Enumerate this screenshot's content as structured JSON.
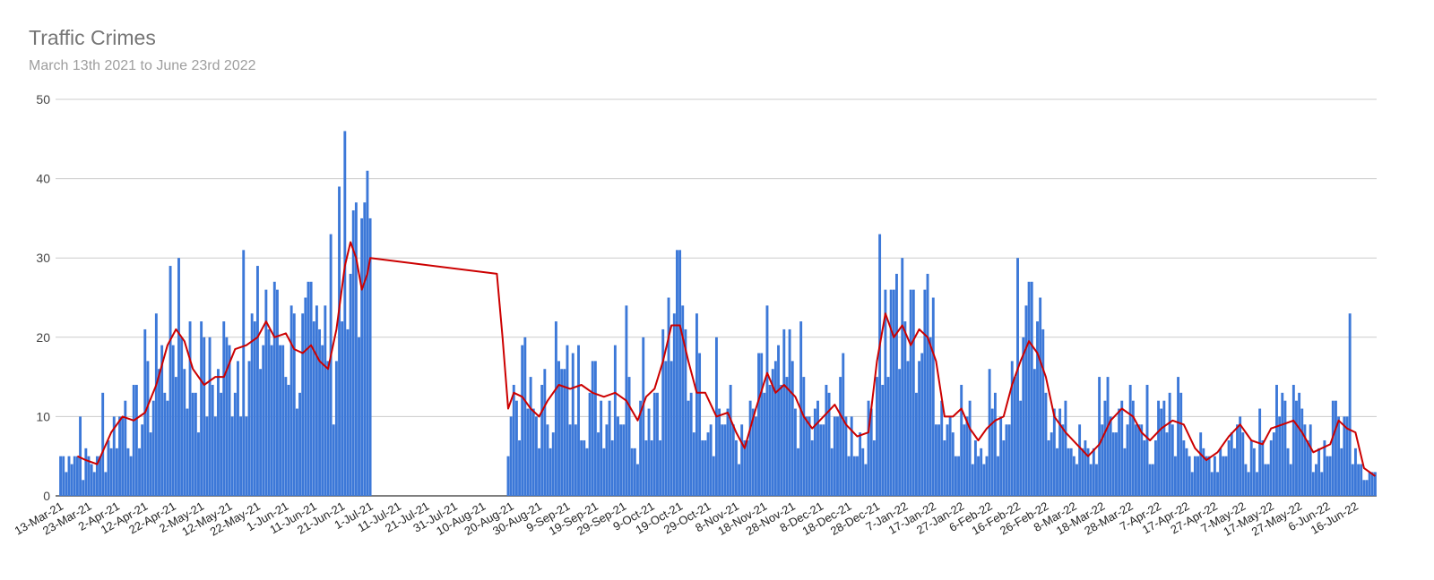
{
  "title": "Traffic Crimes",
  "subtitle": "March 13th 2021 to June 23rd 2022",
  "colors": {
    "bars": "#3c78d8",
    "moving_average": "#cc0000",
    "grid": "#cccccc",
    "title": "#757575",
    "subtitle": "#9e9e9e"
  },
  "chart_data": {
    "type": "bar",
    "title": "Traffic Crimes",
    "subtitle": "March 13th 2021 to June 23rd 2022",
    "x_start": "2021-03-13",
    "x_end": "2022-06-23",
    "ylim": [
      0,
      50
    ],
    "y_ticks": [
      "0",
      "10",
      "20",
      "30",
      "40",
      "50"
    ],
    "x_tick_labels": [
      "13-Mar-21",
      "23-Mar-21",
      "2-Apr-21",
      "12-Apr-21",
      "22-Apr-21",
      "2-May-21",
      "12-May-21",
      "22-May-21",
      "1-Jun-21",
      "11-Jun-21",
      "21-Jun-21",
      "1-Jul-21",
      "11-Jul-21",
      "21-Jul-21",
      "31-Jul-21",
      "10-Aug-21",
      "20-Aug-21",
      "30-Aug-21",
      "9-Sep-21",
      "19-Sep-21",
      "29-Sep-21",
      "9-Oct-21",
      "19-Oct-21",
      "29-Oct-21",
      "8-Nov-21",
      "18-Nov-21",
      "28-Nov-21",
      "8-Dec-21",
      "18-Dec-21",
      "28-Dec-21",
      "7-Jan-22",
      "17-Jan-22",
      "27-Jan-22",
      "6-Feb-22",
      "16-Feb-22",
      "26-Feb-22",
      "8-Mar-22",
      "18-Mar-22",
      "28-Mar-22",
      "7-Apr-22",
      "17-Apr-22",
      "27-Apr-22",
      "7-May-22",
      "17-May-22",
      "27-May-22",
      "6-Jun-22",
      "16-Jun-22"
    ],
    "grid": true,
    "legend": "none",
    "gap": {
      "from": "2021-07-02",
      "to": "2021-08-18"
    },
    "daily_peaks": [
      {
        "date": "2021-03-16",
        "value": 5
      },
      {
        "date": "2021-03-20",
        "value": 10
      },
      {
        "date": "2021-03-28",
        "value": 13
      },
      {
        "date": "2021-04-05",
        "value": 12
      },
      {
        "date": "2021-04-12",
        "value": 21
      },
      {
        "date": "2021-04-16",
        "value": 23
      },
      {
        "date": "2021-04-24",
        "value": 30
      },
      {
        "date": "2021-05-02",
        "value": 22
      },
      {
        "date": "2021-05-10",
        "value": 22
      },
      {
        "date": "2021-05-17",
        "value": 31
      },
      {
        "date": "2021-05-25",
        "value": 26
      },
      {
        "date": "2021-05-29",
        "value": 26
      },
      {
        "date": "2021-06-04",
        "value": 23
      },
      {
        "date": "2021-06-11",
        "value": 22
      },
      {
        "date": "2021-06-15",
        "value": 24
      },
      {
        "date": "2021-06-17",
        "value": 33
      },
      {
        "date": "2021-06-20",
        "value": 39
      },
      {
        "date": "2021-06-22",
        "value": 46
      },
      {
        "date": "2021-06-28",
        "value": 35
      },
      {
        "date": "2021-06-29",
        "value": 37
      },
      {
        "date": "2021-07-01",
        "value": 35
      },
      {
        "date": "2021-08-25",
        "value": 20
      },
      {
        "date": "2021-09-05",
        "value": 22
      },
      {
        "date": "2021-09-13",
        "value": 19
      },
      {
        "date": "2021-09-26",
        "value": 19
      },
      {
        "date": "2021-09-30",
        "value": 24
      },
      {
        "date": "2021-10-06",
        "value": 20
      },
      {
        "date": "2021-10-17",
        "value": 23
      },
      {
        "date": "2021-10-19",
        "value": 31
      },
      {
        "date": "2021-10-25",
        "value": 23
      },
      {
        "date": "2021-11-01",
        "value": 20
      },
      {
        "date": "2021-11-19",
        "value": 24
      },
      {
        "date": "2021-11-27",
        "value": 21
      },
      {
        "date": "2021-12-01",
        "value": 22
      },
      {
        "date": "2021-12-16",
        "value": 18
      },
      {
        "date": "2021-12-29",
        "value": 33
      },
      {
        "date": "2022-01-03",
        "value": 26
      },
      {
        "date": "2022-01-04",
        "value": 28
      },
      {
        "date": "2022-01-09",
        "value": 26
      },
      {
        "date": "2022-01-14",
        "value": 26
      },
      {
        "date": "2022-01-17",
        "value": 25
      },
      {
        "date": "2022-02-06",
        "value": 16
      },
      {
        "date": "2022-02-16",
        "value": 30
      },
      {
        "date": "2022-02-19",
        "value": 24
      },
      {
        "date": "2022-02-23",
        "value": 22
      },
      {
        "date": "2022-03-01",
        "value": 11
      },
      {
        "date": "2022-03-17",
        "value": 15
      },
      {
        "date": "2022-03-20",
        "value": 15
      },
      {
        "date": "2022-04-03",
        "value": 14
      },
      {
        "date": "2022-04-14",
        "value": 15
      },
      {
        "date": "2022-05-13",
        "value": 11
      },
      {
        "date": "2022-05-19",
        "value": 14
      },
      {
        "date": "2022-05-25",
        "value": 14
      },
      {
        "date": "2022-06-08",
        "value": 12
      },
      {
        "date": "2022-06-14",
        "value": 23
      }
    ],
    "moving_average": [
      {
        "date": "2021-03-19",
        "value": 5
      },
      {
        "date": "2021-03-22",
        "value": 4.5
      },
      {
        "date": "2021-03-26",
        "value": 4
      },
      {
        "date": "2021-03-31",
        "value": 8
      },
      {
        "date": "2021-04-04",
        "value": 10
      },
      {
        "date": "2021-04-08",
        "value": 9.5
      },
      {
        "date": "2021-04-12",
        "value": 10.5
      },
      {
        "date": "2021-04-16",
        "value": 14
      },
      {
        "date": "2021-04-20",
        "value": 19
      },
      {
        "date": "2021-04-23",
        "value": 21
      },
      {
        "date": "2021-04-26",
        "value": 19.5
      },
      {
        "date": "2021-04-29",
        "value": 16
      },
      {
        "date": "2021-05-03",
        "value": 14
      },
      {
        "date": "2021-05-07",
        "value": 15
      },
      {
        "date": "2021-05-10",
        "value": 15
      },
      {
        "date": "2021-05-14",
        "value": 18.5
      },
      {
        "date": "2021-05-18",
        "value": 19
      },
      {
        "date": "2021-05-22",
        "value": 20
      },
      {
        "date": "2021-05-25",
        "value": 22
      },
      {
        "date": "2021-05-28",
        "value": 20
      },
      {
        "date": "2021-06-01",
        "value": 20.5
      },
      {
        "date": "2021-06-04",
        "value": 18.5
      },
      {
        "date": "2021-06-07",
        "value": 18
      },
      {
        "date": "2021-06-10",
        "value": 19
      },
      {
        "date": "2021-06-13",
        "value": 17
      },
      {
        "date": "2021-06-16",
        "value": 16
      },
      {
        "date": "2021-06-19",
        "value": 21
      },
      {
        "date": "2021-06-22",
        "value": 29
      },
      {
        "date": "2021-06-24",
        "value": 32
      },
      {
        "date": "2021-06-26",
        "value": 30
      },
      {
        "date": "2021-06-28",
        "value": 26
      },
      {
        "date": "2021-06-30",
        "value": 28
      },
      {
        "date": "2021-07-01",
        "value": 30
      },
      {
        "date": "2021-08-15",
        "value": 28
      },
      {
        "date": "2021-08-17",
        "value": 20
      },
      {
        "date": "2021-08-19",
        "value": 11
      },
      {
        "date": "2021-08-21",
        "value": 13
      },
      {
        "date": "2021-08-24",
        "value": 12.5
      },
      {
        "date": "2021-08-27",
        "value": 11
      },
      {
        "date": "2021-08-30",
        "value": 10
      },
      {
        "date": "2021-09-02",
        "value": 12
      },
      {
        "date": "2021-09-06",
        "value": 14
      },
      {
        "date": "2021-09-10",
        "value": 13.5
      },
      {
        "date": "2021-09-14",
        "value": 14
      },
      {
        "date": "2021-09-18",
        "value": 13
      },
      {
        "date": "2021-09-22",
        "value": 12.5
      },
      {
        "date": "2021-09-26",
        "value": 13
      },
      {
        "date": "2021-09-30",
        "value": 12
      },
      {
        "date": "2021-10-04",
        "value": 9.5
      },
      {
        "date": "2021-10-07",
        "value": 12.5
      },
      {
        "date": "2021-10-10",
        "value": 13.5
      },
      {
        "date": "2021-10-13",
        "value": 17
      },
      {
        "date": "2021-10-16",
        "value": 21.5
      },
      {
        "date": "2021-10-19",
        "value": 21.5
      },
      {
        "date": "2021-10-22",
        "value": 17
      },
      {
        "date": "2021-10-25",
        "value": 13
      },
      {
        "date": "2021-10-28",
        "value": 13
      },
      {
        "date": "2021-11-01",
        "value": 10
      },
      {
        "date": "2021-11-05",
        "value": 10.5
      },
      {
        "date": "2021-11-08",
        "value": 8
      },
      {
        "date": "2021-11-11",
        "value": 6
      },
      {
        "date": "2021-11-15",
        "value": 11
      },
      {
        "date": "2021-11-19",
        "value": 15.5
      },
      {
        "date": "2021-11-22",
        "value": 13
      },
      {
        "date": "2021-11-25",
        "value": 14
      },
      {
        "date": "2021-11-29",
        "value": 12.5
      },
      {
        "date": "2021-12-02",
        "value": 10
      },
      {
        "date": "2021-12-05",
        "value": 8.5
      },
      {
        "date": "2021-12-09",
        "value": 10
      },
      {
        "date": "2021-12-13",
        "value": 11.5
      },
      {
        "date": "2021-12-17",
        "value": 9
      },
      {
        "date": "2021-12-21",
        "value": 7.5
      },
      {
        "date": "2021-12-25",
        "value": 8
      },
      {
        "date": "2021-12-28",
        "value": 17
      },
      {
        "date": "2021-12-31",
        "value": 23
      },
      {
        "date": "2022-01-03",
        "value": 20
      },
      {
        "date": "2022-01-06",
        "value": 21.5
      },
      {
        "date": "2022-01-09",
        "value": 19
      },
      {
        "date": "2022-01-12",
        "value": 21
      },
      {
        "date": "2022-01-15",
        "value": 20
      },
      {
        "date": "2022-01-18",
        "value": 17
      },
      {
        "date": "2022-01-21",
        "value": 10
      },
      {
        "date": "2022-01-24",
        "value": 10
      },
      {
        "date": "2022-01-27",
        "value": 11
      },
      {
        "date": "2022-01-30",
        "value": 8.5
      },
      {
        "date": "2022-02-02",
        "value": 7
      },
      {
        "date": "2022-02-05",
        "value": 8.5
      },
      {
        "date": "2022-02-08",
        "value": 9.5
      },
      {
        "date": "2022-02-11",
        "value": 10
      },
      {
        "date": "2022-02-14",
        "value": 14
      },
      {
        "date": "2022-02-17",
        "value": 17
      },
      {
        "date": "2022-02-20",
        "value": 19.5
      },
      {
        "date": "2022-02-23",
        "value": 18
      },
      {
        "date": "2022-02-26",
        "value": 15
      },
      {
        "date": "2022-03-01",
        "value": 10
      },
      {
        "date": "2022-03-05",
        "value": 8
      },
      {
        "date": "2022-03-09",
        "value": 6.5
      },
      {
        "date": "2022-03-13",
        "value": 5
      },
      {
        "date": "2022-03-17",
        "value": 6.5
      },
      {
        "date": "2022-03-21",
        "value": 9.5
      },
      {
        "date": "2022-03-25",
        "value": 11
      },
      {
        "date": "2022-03-29",
        "value": 10
      },
      {
        "date": "2022-04-01",
        "value": 8
      },
      {
        "date": "2022-04-04",
        "value": 7
      },
      {
        "date": "2022-04-08",
        "value": 8.5
      },
      {
        "date": "2022-04-12",
        "value": 9.5
      },
      {
        "date": "2022-04-16",
        "value": 9
      },
      {
        "date": "2022-04-20",
        "value": 6
      },
      {
        "date": "2022-04-24",
        "value": 4.5
      },
      {
        "date": "2022-04-28",
        "value": 5.5
      },
      {
        "date": "2022-05-02",
        "value": 7.5
      },
      {
        "date": "2022-05-06",
        "value": 9
      },
      {
        "date": "2022-05-10",
        "value": 7
      },
      {
        "date": "2022-05-14",
        "value": 6.5
      },
      {
        "date": "2022-05-17",
        "value": 8.5
      },
      {
        "date": "2022-05-21",
        "value": 9
      },
      {
        "date": "2022-05-25",
        "value": 9.5
      },
      {
        "date": "2022-05-28",
        "value": 8
      },
      {
        "date": "2022-06-01",
        "value": 5.5
      },
      {
        "date": "2022-06-04",
        "value": 6
      },
      {
        "date": "2022-06-07",
        "value": 6.5
      },
      {
        "date": "2022-06-10",
        "value": 9.5
      },
      {
        "date": "2022-06-13",
        "value": 8.5
      },
      {
        "date": "2022-06-16",
        "value": 8
      },
      {
        "date": "2022-06-19",
        "value": 3.5
      },
      {
        "date": "2022-06-23",
        "value": 2.5
      }
    ]
  }
}
